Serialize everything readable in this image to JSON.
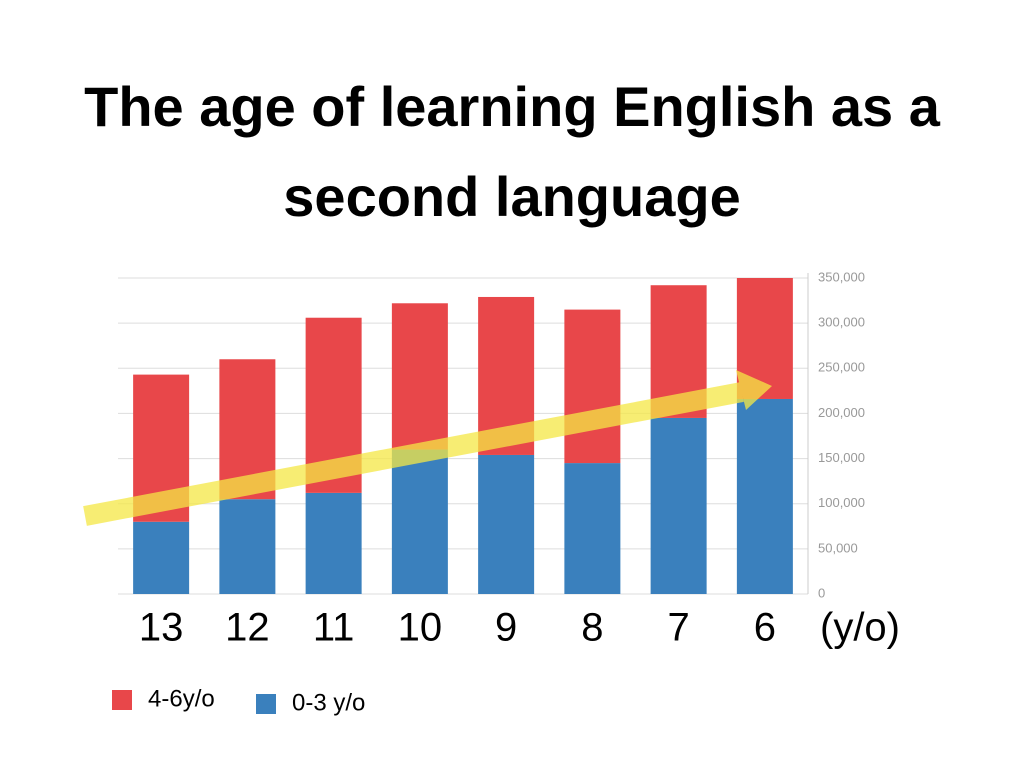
{
  "chart_data": {
    "type": "stacked-bar",
    "title": "The age of learning English as a second language",
    "categories": [
      "13",
      "12",
      "11",
      "10",
      "9",
      "8",
      "7",
      "6"
    ],
    "x_label": "(y/o)",
    "series": [
      {
        "name": "0-3 y/o",
        "color": "#3a80bd",
        "values": [
          80000,
          105000,
          112000,
          160000,
          154000,
          145000,
          195000,
          216000
        ]
      },
      {
        "name": "4-6y/o",
        "color": "#e8474a",
        "values": [
          163000,
          155000,
          194000,
          162000,
          175000,
          170000,
          147000,
          134000
        ]
      }
    ],
    "ylim": [
      0,
      350000
    ],
    "yticks": [
      0,
      {
        "value": 50000,
        "label": "50,000"
      },
      {
        "value": 100000,
        "label": "100,000"
      },
      {
        "value": 150000,
        "label": "150,000"
      },
      {
        "value": 200000,
        "label": "200,000"
      },
      {
        "value": 250000,
        "label": "250,000"
      },
      {
        "value": 300000,
        "label": "300,000"
      },
      {
        "value": 350000,
        "label": "350,000"
      }
    ],
    "y_axis_side": "right",
    "grid": true
  }
}
